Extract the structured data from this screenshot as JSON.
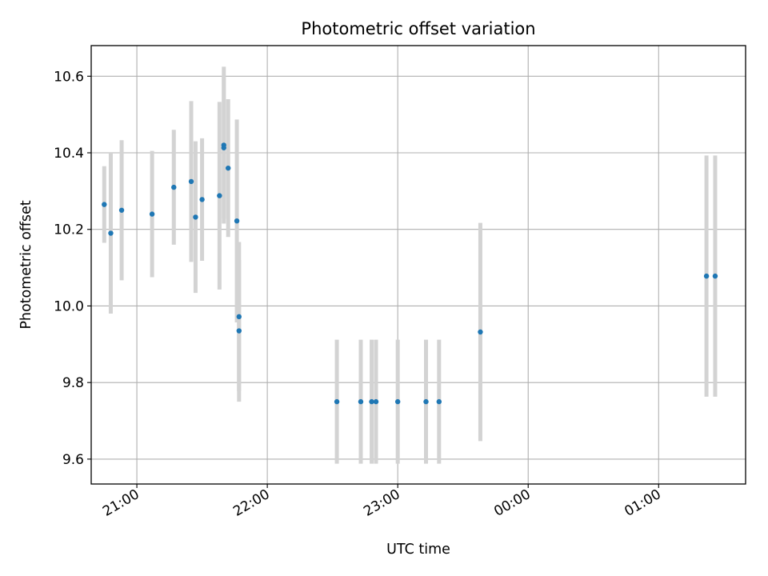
{
  "chart_data": {
    "type": "scatter",
    "title": "Photometric offset variation",
    "xlabel": "UTC time",
    "ylabel": "Photometric offset",
    "grid": true,
    "x_ticks": [
      "21:00",
      "22:00",
      "23:00",
      "00:00",
      "01:00"
    ],
    "y_ticks": [
      "9.6",
      "9.8",
      "10.0",
      "10.2",
      "10.4",
      "10.6"
    ],
    "xlim": [
      "20:39",
      "01:40"
    ],
    "ylim": [
      9.535,
      10.68
    ],
    "colors": {
      "point": "#1f77b4",
      "errorbar": "#d3d3d3"
    },
    "series": [
      {
        "points": [
          {
            "x": "20:45",
            "y": 10.265,
            "yerr": 0.1
          },
          {
            "x": "20:48",
            "y": 10.19,
            "yerr": 0.21
          },
          {
            "x": "20:53",
            "y": 10.25,
            "yerr": 0.183
          },
          {
            "x": "21:07",
            "y": 10.24,
            "yerr": 0.165
          },
          {
            "x": "21:17",
            "y": 10.31,
            "yerr": 0.15
          },
          {
            "x": "21:25",
            "y": 10.325,
            "yerr": 0.21
          },
          {
            "x": "21:27",
            "y": 10.232,
            "yerr": 0.198
          },
          {
            "x": "21:30",
            "y": 10.278,
            "yerr": 0.16
          },
          {
            "x": "21:38",
            "y": 10.288,
            "yerr": 0.245
          },
          {
            "x": "21:40",
            "y": 10.42,
            "yerr": 0.205
          },
          {
            "x": "21:40",
            "y": 10.413,
            "yerr": 0.185
          },
          {
            "x": "21:42",
            "y": 10.36,
            "yerr": 0.18
          },
          {
            "x": "21:46",
            "y": 10.222,
            "yerr": 0.265
          },
          {
            "x": "21:47",
            "y": 9.972,
            "yerr": 0.195
          },
          {
            "x": "21:47",
            "y": 9.935,
            "yerr": 0.185
          },
          {
            "x": "22:32",
            "y": 9.75,
            "yerr": 0.162
          },
          {
            "x": "22:43",
            "y": 9.75,
            "yerr": 0.162
          },
          {
            "x": "22:48",
            "y": 9.75,
            "yerr": 0.162
          },
          {
            "x": "22:50",
            "y": 9.75,
            "yerr": 0.162
          },
          {
            "x": "23:00",
            "y": 9.75,
            "yerr": 0.162
          },
          {
            "x": "23:13",
            "y": 9.75,
            "yerr": 0.162
          },
          {
            "x": "23:19",
            "y": 9.75,
            "yerr": 0.162
          },
          {
            "x": "23:38",
            "y": 9.932,
            "yerr": 0.285
          },
          {
            "x": "01:22",
            "y": 10.078,
            "yerr": 0.315
          },
          {
            "x": "01:26",
            "y": 10.078,
            "yerr": 0.315
          }
        ]
      }
    ]
  }
}
